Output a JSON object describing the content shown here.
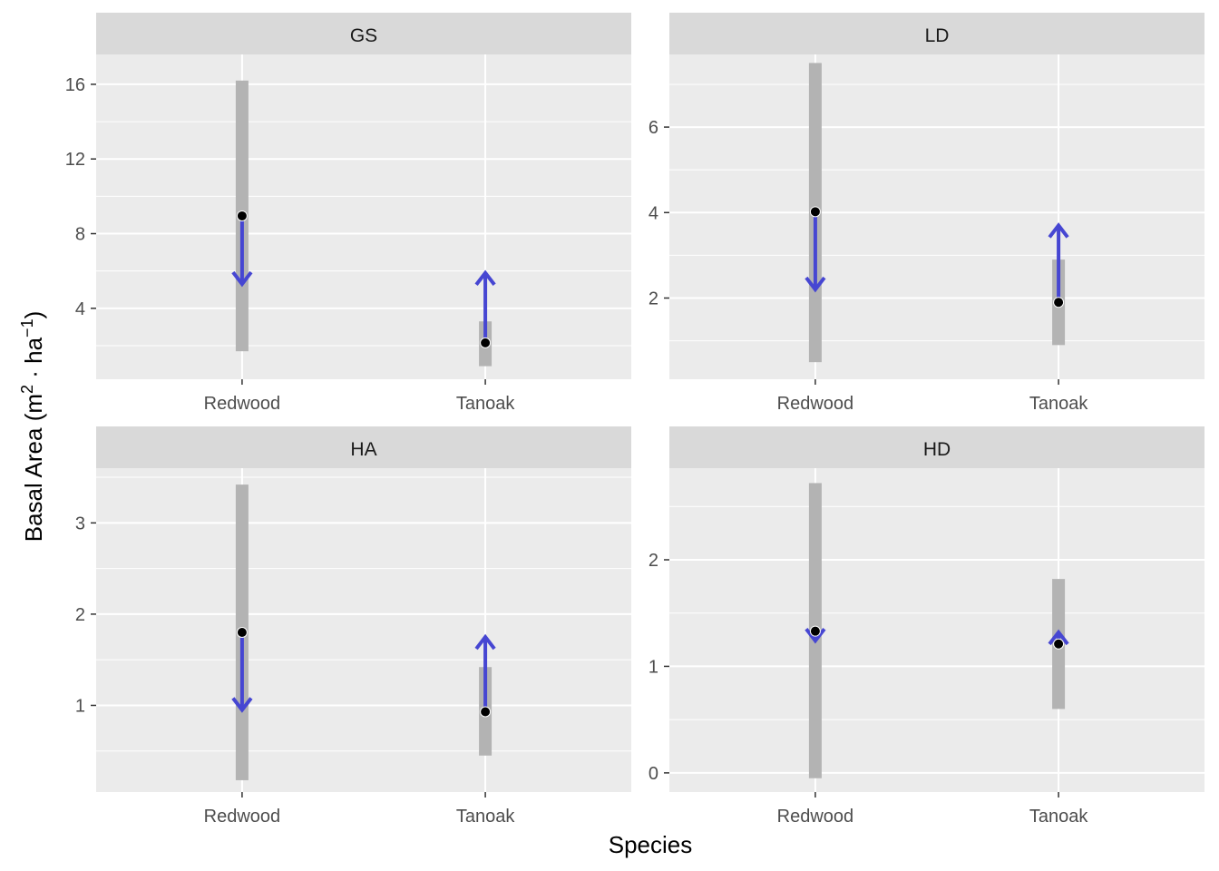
{
  "chart_data": {
    "type": "faceted-range-arrow",
    "xlabel": "Species",
    "ylabel": {
      "base": "Basal Area (m",
      "sup1": "2",
      "mid": " · ha",
      "sup2": "−1",
      "end": ")"
    },
    "categories": [
      "Redwood",
      "Tanoak"
    ],
    "grid": true,
    "colors": {
      "panel": "#ebebeb",
      "strip": "#d9d9d9",
      "range": "#b3b3b3",
      "arrow": "#4646d2",
      "point": "#000000",
      "grid": "#ffffff"
    },
    "facets": [
      {
        "name": "GS",
        "ylim": [
          0.2,
          17.6
        ],
        "ticks": [
          4,
          8,
          12,
          16
        ],
        "data": [
          {
            "species": "Redwood",
            "min": 1.7,
            "max": 16.2,
            "point": 8.95,
            "arrow_end": 5.3
          },
          {
            "species": "Tanoak",
            "min": 0.9,
            "max": 3.3,
            "point": 2.15,
            "arrow_end": 5.9
          }
        ]
      },
      {
        "name": "LD",
        "ylim": [
          0.1,
          7.7
        ],
        "ticks": [
          2,
          4,
          6
        ],
        "data": [
          {
            "species": "Redwood",
            "min": 0.5,
            "max": 7.5,
            "point": 4.02,
            "arrow_end": 2.2
          },
          {
            "species": "Tanoak",
            "min": 0.9,
            "max": 2.9,
            "point": 1.9,
            "arrow_end": 3.7
          }
        ]
      },
      {
        "name": "HA",
        "ylim": [
          0.05,
          3.6
        ],
        "ticks": [
          1,
          2,
          3
        ],
        "data": [
          {
            "species": "Redwood",
            "min": 0.18,
            "max": 3.42,
            "point": 1.8,
            "arrow_end": 0.95
          },
          {
            "species": "Tanoak",
            "min": 0.45,
            "max": 1.42,
            "point": 0.93,
            "arrow_end": 1.75
          }
        ]
      },
      {
        "name": "HD",
        "ylim": [
          -0.18,
          2.86
        ],
        "ticks": [
          0,
          1,
          2
        ],
        "data": [
          {
            "species": "Redwood",
            "min": -0.05,
            "max": 2.72,
            "point": 1.33,
            "arrow_end": 1.24
          },
          {
            "species": "Tanoak",
            "min": 0.6,
            "max": 1.82,
            "point": 1.21,
            "arrow_end": 1.32
          }
        ]
      }
    ]
  }
}
